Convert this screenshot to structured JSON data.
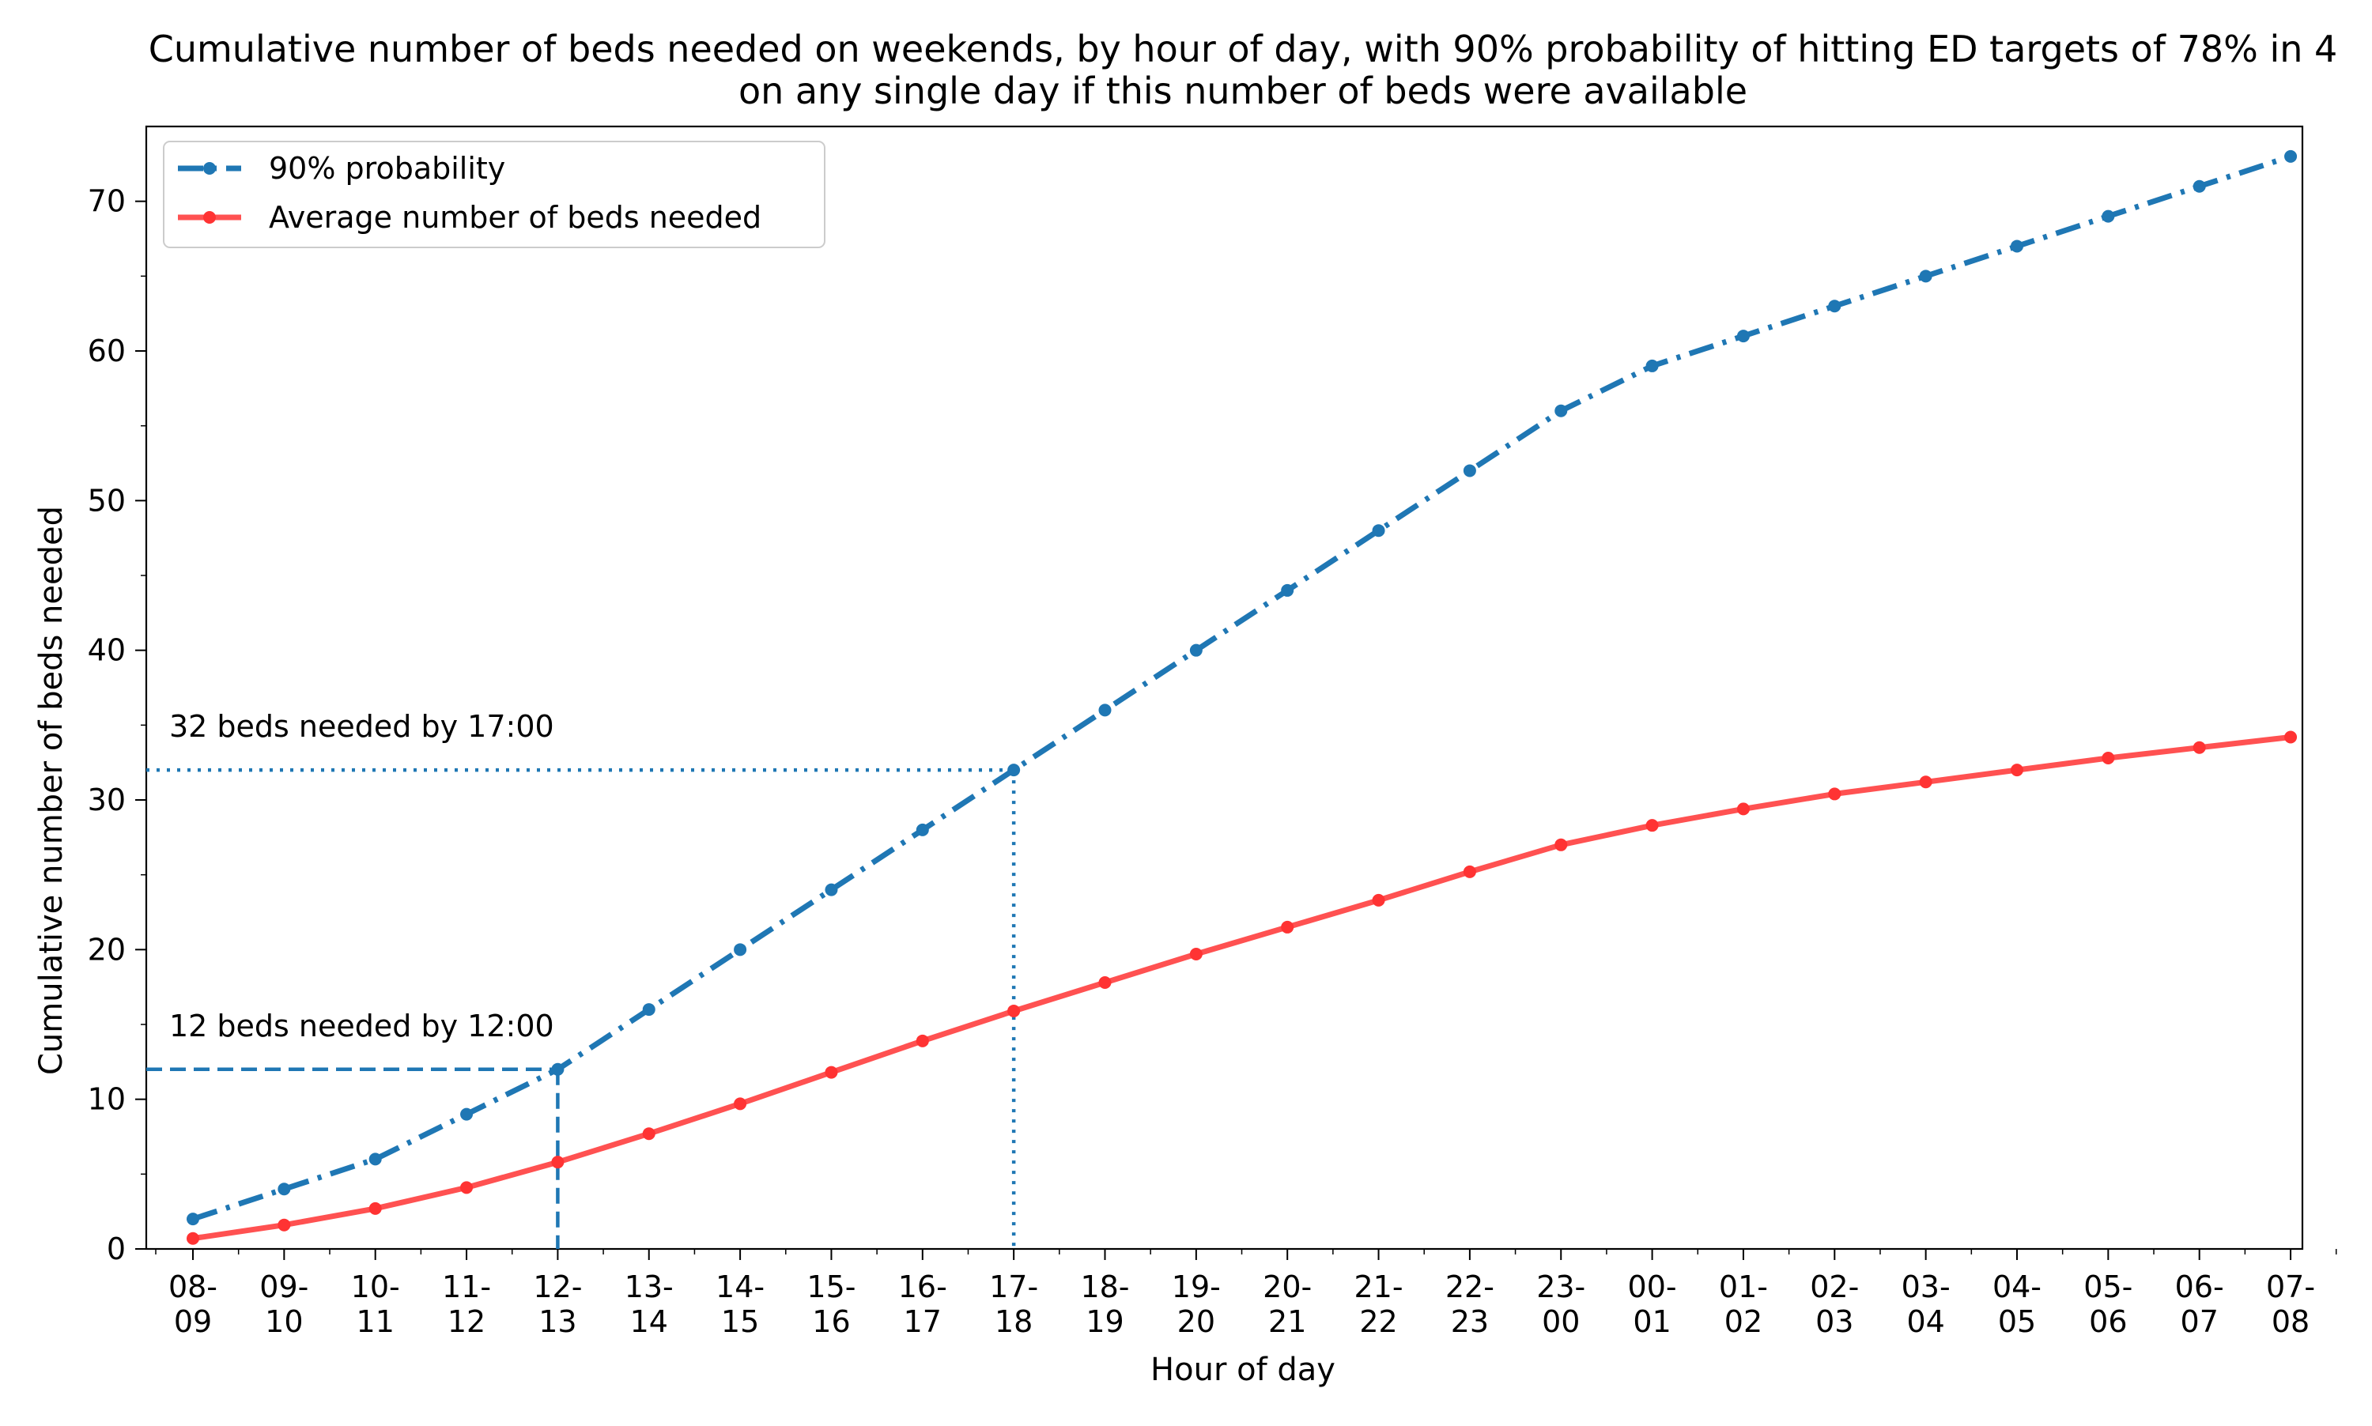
{
  "chart_data": {
    "type": "line",
    "title_lines": [
      "Cumulative number of beds needed on weekends, by hour of day, with 90% probability of hitting ED targets of 78% in 4",
      "on any single day if this number of beds were available"
    ],
    "xlabel": "Hour of day",
    "ylabel": "Cumulative number of beds needed",
    "ylim": [
      0,
      75
    ],
    "yticks": [
      0,
      10,
      20,
      30,
      40,
      50,
      60,
      70
    ],
    "categories": [
      [
        "08-",
        "09"
      ],
      [
        "09-",
        "10"
      ],
      [
        "10-",
        "11"
      ],
      [
        "11-",
        "12"
      ],
      [
        "12-",
        "13"
      ],
      [
        "13-",
        "14"
      ],
      [
        "14-",
        "15"
      ],
      [
        "15-",
        "16"
      ],
      [
        "16-",
        "17"
      ],
      [
        "17-",
        "18"
      ],
      [
        "18-",
        "19"
      ],
      [
        "19-",
        "20"
      ],
      [
        "20-",
        "21"
      ],
      [
        "21-",
        "22"
      ],
      [
        "22-",
        "23"
      ],
      [
        "23-",
        "00"
      ],
      [
        "00-",
        "01"
      ],
      [
        "01-",
        "02"
      ],
      [
        "02-",
        "03"
      ],
      [
        "03-",
        "04"
      ],
      [
        "04-",
        "05"
      ],
      [
        "05-",
        "06"
      ],
      [
        "06-",
        "07"
      ],
      [
        "07-",
        "08"
      ]
    ],
    "series": [
      {
        "name": "90% probability",
        "color": "#1f77b4",
        "style": "dash-dot",
        "values": [
          2,
          4,
          6,
          9,
          12,
          16,
          20,
          24,
          28,
          32,
          36,
          40,
          44,
          48,
          52,
          56,
          59,
          61,
          63,
          65,
          67,
          69,
          71,
          73
        ]
      },
      {
        "name": "Average number of beds needed",
        "color": "#ff3333",
        "style": "solid",
        "values": [
          0.7,
          1.6,
          2.7,
          4.1,
          5.8,
          7.7,
          9.7,
          11.8,
          13.9,
          15.9,
          17.8,
          19.7,
          21.5,
          23.3,
          25.2,
          27.0,
          28.3,
          29.4,
          30.4,
          31.2,
          32.0,
          32.8,
          33.5,
          34.2
        ]
      }
    ],
    "annotations": [
      {
        "text": "12 beds needed by 12:00",
        "category_index": 4,
        "value": 12,
        "style": "dashed"
      },
      {
        "text": "32 beds needed by 17:00",
        "category_index": 9,
        "value": 32,
        "style": "dotted"
      }
    ],
    "legend": "upper-left",
    "grid": false
  }
}
